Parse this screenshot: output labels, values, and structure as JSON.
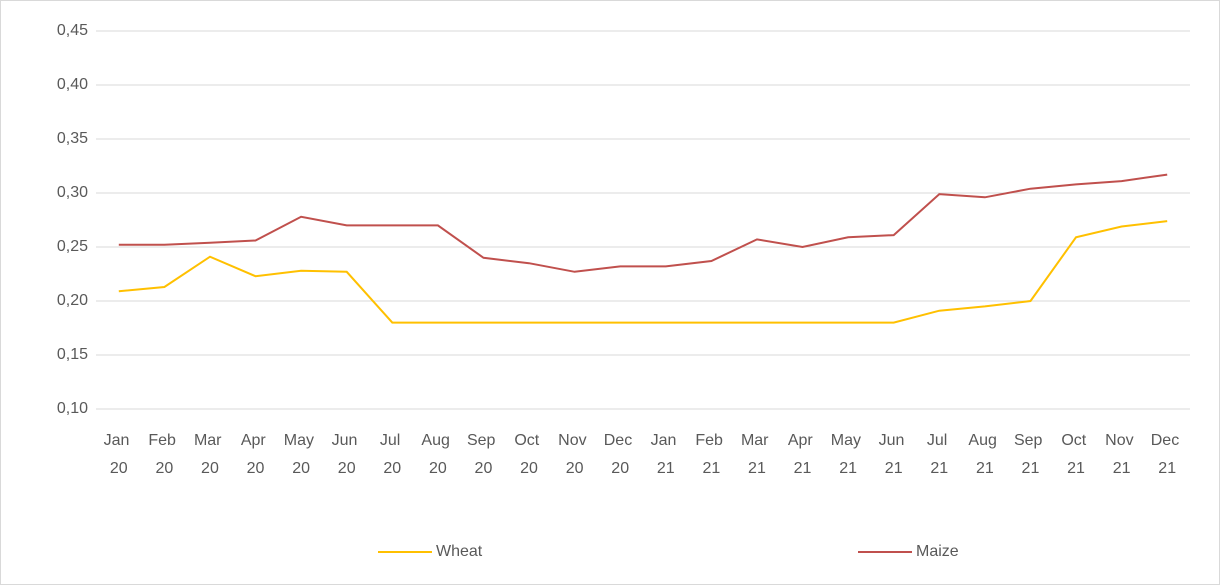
{
  "chart_data": {
    "type": "line",
    "categories": [
      "Jan 20",
      "Feb 20",
      "Mar 20",
      "Apr 20",
      "May 20",
      "Jun 20",
      "Jul 20",
      "Aug 20",
      "Sep 20",
      "Oct 20",
      "Nov 20",
      "Dec 20",
      "Jan 21",
      "Feb 21",
      "Mar 21",
      "Apr 21",
      "May 21",
      "Jun 21",
      "Jul 21",
      "Aug 21",
      "Sep 21",
      "Oct 21",
      "Nov 21",
      "Dec 21"
    ],
    "series": [
      {
        "name": "Wheat",
        "color": "#ffc000",
        "values": [
          0.209,
          0.213,
          0.241,
          0.223,
          0.228,
          0.227,
          0.18,
          0.18,
          0.18,
          0.18,
          0.18,
          0.18,
          0.18,
          0.18,
          0.18,
          0.18,
          0.18,
          0.18,
          0.191,
          0.195,
          0.2,
          0.259,
          0.269,
          0.274
        ]
      },
      {
        "name": "Maize",
        "color": "#c0504d",
        "values": [
          0.252,
          0.252,
          0.254,
          0.256,
          0.278,
          0.27,
          0.27,
          0.27,
          0.24,
          0.235,
          0.227,
          0.232,
          0.232,
          0.237,
          0.257,
          0.25,
          0.259,
          0.261,
          0.299,
          0.296,
          0.304,
          0.308,
          0.311,
          0.317
        ]
      }
    ],
    "ylim": [
      0.1,
      0.45
    ],
    "yticks": [
      {
        "value": 0.1,
        "label": "0,10"
      },
      {
        "value": 0.15,
        "label": "0,15"
      },
      {
        "value": 0.2,
        "label": "0,20"
      },
      {
        "value": 0.25,
        "label": "0,25"
      },
      {
        "value": 0.3,
        "label": "0,30"
      },
      {
        "value": 0.35,
        "label": "0,35"
      },
      {
        "value": 0.4,
        "label": "0,40"
      },
      {
        "value": 0.45,
        "label": "0,45"
      }
    ],
    "grid": true,
    "legend": "bottom"
  }
}
